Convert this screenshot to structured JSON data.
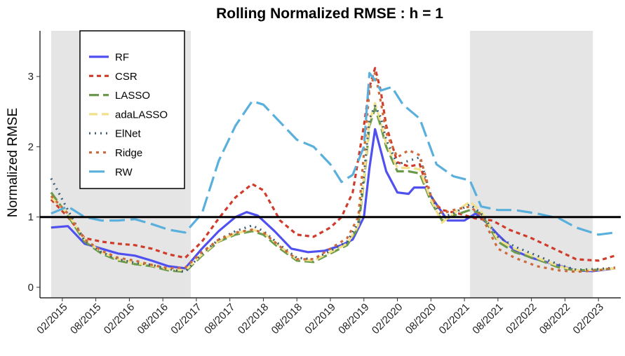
{
  "chart_data": {
    "type": "line",
    "title": "Rolling Normalized RMSE : h = 1",
    "xlabel": "",
    "ylabel": "Normalized RMSE",
    "ylim": [
      -0.15,
      3.65
    ],
    "yticks": [
      0,
      1,
      2,
      3
    ],
    "xticks": [
      "02/2015",
      "08/2015",
      "02/2016",
      "08/2016",
      "02/2017",
      "08/2017",
      "02/2018",
      "08/2018",
      "02/2019",
      "08/2019",
      "02/2020",
      "08/2020",
      "02/2021",
      "08/2021",
      "02/2022",
      "08/2022",
      "02/2023"
    ],
    "x_range_months": [
      "2014-10",
      "2023-06"
    ],
    "grid": false,
    "legend_position": "top-left",
    "reference_line": 1,
    "shaded_regions": [
      [
        "2014-12",
        "2017-01"
      ],
      [
        "2021-03",
        "2023-01"
      ]
    ],
    "colors": {
      "shade": "#e5e5e5",
      "reference": "#000000"
    },
    "series": [
      {
        "name": "RF",
        "color": "#5050f0",
        "dash": "solid",
        "points": [
          [
            "2014-12",
            0.85
          ],
          [
            "2015-03",
            0.87
          ],
          [
            "2015-06",
            0.62
          ],
          [
            "2015-09",
            0.55
          ],
          [
            "2015-12",
            0.48
          ],
          [
            "2016-03",
            0.45
          ],
          [
            "2016-06",
            0.38
          ],
          [
            "2016-09",
            0.3
          ],
          [
            "2016-12",
            0.27
          ],
          [
            "2017-03",
            0.55
          ],
          [
            "2017-06",
            0.8
          ],
          [
            "2017-09",
            1.0
          ],
          [
            "2017-11",
            1.07
          ],
          [
            "2018-01",
            1.02
          ],
          [
            "2018-04",
            0.8
          ],
          [
            "2018-07",
            0.55
          ],
          [
            "2018-10",
            0.5
          ],
          [
            "2019-01",
            0.52
          ],
          [
            "2019-04",
            0.6
          ],
          [
            "2019-06",
            0.68
          ],
          [
            "2019-08",
            1.0
          ],
          [
            "2019-09",
            1.7
          ],
          [
            "2019-10",
            2.25
          ],
          [
            "2019-11",
            1.95
          ],
          [
            "2019-12",
            1.65
          ],
          [
            "2020-02",
            1.35
          ],
          [
            "2020-04",
            1.33
          ],
          [
            "2020-05",
            1.42
          ],
          [
            "2020-07",
            1.42
          ],
          [
            "2020-09",
            1.18
          ],
          [
            "2020-11",
            0.95
          ],
          [
            "2021-02",
            0.95
          ],
          [
            "2021-04",
            1.05
          ],
          [
            "2021-06",
            0.92
          ],
          [
            "2021-08",
            0.75
          ],
          [
            "2021-11",
            0.52
          ],
          [
            "2022-02",
            0.42
          ],
          [
            "2022-06",
            0.33
          ],
          [
            "2022-10",
            0.24
          ],
          [
            "2023-01",
            0.23
          ],
          [
            "2023-05",
            0.27
          ]
        ]
      },
      {
        "name": "CSR",
        "color": "#d03c2c",
        "dash": "6,5",
        "points": [
          [
            "2014-12",
            1.25
          ],
          [
            "2015-03",
            1.0
          ],
          [
            "2015-06",
            0.7
          ],
          [
            "2015-09",
            0.65
          ],
          [
            "2015-12",
            0.62
          ],
          [
            "2016-03",
            0.6
          ],
          [
            "2016-06",
            0.55
          ],
          [
            "2016-09",
            0.47
          ],
          [
            "2016-12",
            0.42
          ],
          [
            "2017-03",
            0.65
          ],
          [
            "2017-06",
            0.98
          ],
          [
            "2017-09",
            1.28
          ],
          [
            "2017-12",
            1.47
          ],
          [
            "2018-02",
            1.38
          ],
          [
            "2018-05",
            0.95
          ],
          [
            "2018-08",
            0.75
          ],
          [
            "2018-11",
            0.72
          ],
          [
            "2019-02",
            0.85
          ],
          [
            "2019-04",
            1.0
          ],
          [
            "2019-06",
            1.35
          ],
          [
            "2019-08",
            2.3
          ],
          [
            "2019-09",
            2.85
          ],
          [
            "2019-10",
            3.12
          ],
          [
            "2019-11",
            2.8
          ],
          [
            "2019-12",
            2.3
          ],
          [
            "2020-02",
            1.78
          ],
          [
            "2020-04",
            1.72
          ],
          [
            "2020-06",
            1.75
          ],
          [
            "2020-08",
            1.25
          ],
          [
            "2020-10",
            1.1
          ],
          [
            "2021-01",
            1.05
          ],
          [
            "2021-04",
            0.98
          ],
          [
            "2021-07",
            0.95
          ],
          [
            "2021-10",
            0.82
          ],
          [
            "2022-02",
            0.7
          ],
          [
            "2022-06",
            0.55
          ],
          [
            "2022-10",
            0.4
          ],
          [
            "2023-02",
            0.38
          ],
          [
            "2023-05",
            0.45
          ]
        ]
      },
      {
        "name": "LASSO",
        "color": "#6b9a4a",
        "dash": "14,6",
        "points": [
          [
            "2014-12",
            1.35
          ],
          [
            "2015-03",
            1.02
          ],
          [
            "2015-06",
            0.65
          ],
          [
            "2015-09",
            0.48
          ],
          [
            "2015-12",
            0.38
          ],
          [
            "2016-03",
            0.33
          ],
          [
            "2016-06",
            0.3
          ],
          [
            "2016-09",
            0.24
          ],
          [
            "2016-12",
            0.22
          ],
          [
            "2017-03",
            0.45
          ],
          [
            "2017-06",
            0.65
          ],
          [
            "2017-09",
            0.75
          ],
          [
            "2017-12",
            0.8
          ],
          [
            "2018-02",
            0.75
          ],
          [
            "2018-05",
            0.55
          ],
          [
            "2018-08",
            0.38
          ],
          [
            "2018-11",
            0.36
          ],
          [
            "2019-02",
            0.48
          ],
          [
            "2019-05",
            0.6
          ],
          [
            "2019-07",
            0.85
          ],
          [
            "2019-08",
            1.5
          ],
          [
            "2019-09",
            2.3
          ],
          [
            "2019-10",
            2.55
          ],
          [
            "2019-11",
            2.3
          ],
          [
            "2019-12",
            2.0
          ],
          [
            "2020-02",
            1.65
          ],
          [
            "2020-04",
            1.65
          ],
          [
            "2020-06",
            1.62
          ],
          [
            "2020-08",
            1.22
          ],
          [
            "2020-10",
            0.95
          ],
          [
            "2020-12",
            1.02
          ],
          [
            "2021-03",
            1.1
          ],
          [
            "2021-05",
            1.05
          ],
          [
            "2021-08",
            0.65
          ],
          [
            "2021-11",
            0.5
          ],
          [
            "2022-03",
            0.4
          ],
          [
            "2022-07",
            0.28
          ],
          [
            "2022-10",
            0.24
          ],
          [
            "2023-02",
            0.25
          ],
          [
            "2023-05",
            0.27
          ]
        ]
      },
      {
        "name": "adaLASSO",
        "color": "#f2e08a",
        "dash": "12,6",
        "points": [
          [
            "2014-12",
            1.28
          ],
          [
            "2015-03",
            1.05
          ],
          [
            "2015-06",
            0.68
          ],
          [
            "2015-09",
            0.5
          ],
          [
            "2015-12",
            0.4
          ],
          [
            "2016-03",
            0.35
          ],
          [
            "2016-06",
            0.31
          ],
          [
            "2016-09",
            0.26
          ],
          [
            "2016-12",
            0.24
          ],
          [
            "2017-03",
            0.47
          ],
          [
            "2017-06",
            0.66
          ],
          [
            "2017-09",
            0.77
          ],
          [
            "2017-12",
            0.82
          ],
          [
            "2018-02",
            0.78
          ],
          [
            "2018-05",
            0.58
          ],
          [
            "2018-08",
            0.4
          ],
          [
            "2018-11",
            0.38
          ],
          [
            "2019-02",
            0.5
          ],
          [
            "2019-05",
            0.62
          ],
          [
            "2019-07",
            0.88
          ],
          [
            "2019-08",
            1.55
          ],
          [
            "2019-09",
            2.35
          ],
          [
            "2019-10",
            2.62
          ],
          [
            "2019-11",
            2.35
          ],
          [
            "2019-12",
            2.05
          ],
          [
            "2020-02",
            1.7
          ],
          [
            "2020-04",
            1.7
          ],
          [
            "2020-06",
            1.68
          ],
          [
            "2020-08",
            1.25
          ],
          [
            "2020-10",
            0.92
          ],
          [
            "2020-12",
            1.05
          ],
          [
            "2021-03",
            1.22
          ],
          [
            "2021-05",
            1.08
          ],
          [
            "2021-08",
            0.68
          ],
          [
            "2021-11",
            0.55
          ],
          [
            "2022-03",
            0.42
          ],
          [
            "2022-07",
            0.3
          ],
          [
            "2022-10",
            0.24
          ],
          [
            "2023-02",
            0.25
          ],
          [
            "2023-05",
            0.27
          ]
        ]
      },
      {
        "name": "ElNet",
        "color": "#3c5f7a",
        "dash": "2,6",
        "points": [
          [
            "2014-12",
            1.55
          ],
          [
            "2015-03",
            1.1
          ],
          [
            "2015-06",
            0.66
          ],
          [
            "2015-09",
            0.5
          ],
          [
            "2015-12",
            0.4
          ],
          [
            "2016-03",
            0.35
          ],
          [
            "2016-06",
            0.32
          ],
          [
            "2016-09",
            0.26
          ],
          [
            "2016-12",
            0.22
          ],
          [
            "2017-03",
            0.48
          ],
          [
            "2017-06",
            0.68
          ],
          [
            "2017-09",
            0.8
          ],
          [
            "2017-12",
            0.88
          ],
          [
            "2018-02",
            0.8
          ],
          [
            "2018-05",
            0.6
          ],
          [
            "2018-08",
            0.42
          ],
          [
            "2018-11",
            0.4
          ],
          [
            "2019-02",
            0.52
          ],
          [
            "2019-05",
            0.65
          ],
          [
            "2019-07",
            0.92
          ],
          [
            "2019-08",
            1.6
          ],
          [
            "2019-09",
            2.4
          ],
          [
            "2019-10",
            2.58
          ],
          [
            "2019-11",
            2.42
          ],
          [
            "2019-12",
            2.1
          ],
          [
            "2020-02",
            1.75
          ],
          [
            "2020-04",
            1.8
          ],
          [
            "2020-06",
            1.85
          ],
          [
            "2020-08",
            1.3
          ],
          [
            "2020-10",
            1.0
          ],
          [
            "2020-12",
            1.05
          ],
          [
            "2021-03",
            1.18
          ],
          [
            "2021-05",
            1.05
          ],
          [
            "2021-08",
            0.72
          ],
          [
            "2021-11",
            0.58
          ],
          [
            "2022-03",
            0.45
          ],
          [
            "2022-07",
            0.32
          ],
          [
            "2022-10",
            0.25
          ],
          [
            "2023-02",
            0.26
          ],
          [
            "2023-05",
            0.28
          ]
        ]
      },
      {
        "name": "Ridge",
        "color": "#cc6a3a",
        "dash": "4,6",
        "points": [
          [
            "2014-12",
            1.3
          ],
          [
            "2015-03",
            1.05
          ],
          [
            "2015-06",
            0.68
          ],
          [
            "2015-09",
            0.52
          ],
          [
            "2015-12",
            0.42
          ],
          [
            "2016-03",
            0.38
          ],
          [
            "2016-06",
            0.32
          ],
          [
            "2016-09",
            0.27
          ],
          [
            "2016-12",
            0.28
          ],
          [
            "2017-03",
            0.5
          ],
          [
            "2017-06",
            0.68
          ],
          [
            "2017-09",
            0.78
          ],
          [
            "2017-12",
            0.82
          ],
          [
            "2018-02",
            0.78
          ],
          [
            "2018-05",
            0.58
          ],
          [
            "2018-08",
            0.4
          ],
          [
            "2018-11",
            0.4
          ],
          [
            "2019-02",
            0.55
          ],
          [
            "2019-05",
            0.7
          ],
          [
            "2019-07",
            1.0
          ],
          [
            "2019-08",
            1.9
          ],
          [
            "2019-09",
            2.8
          ],
          [
            "2019-10",
            3.05
          ],
          [
            "2019-11",
            2.65
          ],
          [
            "2019-12",
            2.2
          ],
          [
            "2020-02",
            1.85
          ],
          [
            "2020-04",
            1.95
          ],
          [
            "2020-06",
            1.88
          ],
          [
            "2020-08",
            1.3
          ],
          [
            "2020-10",
            1.05
          ],
          [
            "2020-12",
            1.1
          ],
          [
            "2021-03",
            1.15
          ],
          [
            "2021-05",
            1.02
          ],
          [
            "2021-08",
            0.55
          ],
          [
            "2021-11",
            0.42
          ],
          [
            "2022-03",
            0.3
          ],
          [
            "2022-07",
            0.24
          ],
          [
            "2022-10",
            0.22
          ],
          [
            "2023-02",
            0.24
          ],
          [
            "2023-05",
            0.28
          ]
        ]
      },
      {
        "name": "RW",
        "color": "#5ab0dc",
        "dash": "22,8",
        "points": [
          [
            "2014-12",
            1.05
          ],
          [
            "2015-03",
            1.15
          ],
          [
            "2015-06",
            1.0
          ],
          [
            "2015-09",
            0.95
          ],
          [
            "2015-12",
            0.95
          ],
          [
            "2016-03",
            0.97
          ],
          [
            "2016-06",
            0.9
          ],
          [
            "2016-09",
            0.82
          ],
          [
            "2016-12",
            0.78
          ],
          [
            "2017-03",
            1.05
          ],
          [
            "2017-06",
            1.8
          ],
          [
            "2017-09",
            2.3
          ],
          [
            "2017-12",
            2.65
          ],
          [
            "2018-02",
            2.6
          ],
          [
            "2018-05",
            2.35
          ],
          [
            "2018-08",
            2.1
          ],
          [
            "2018-11",
            2.0
          ],
          [
            "2019-02",
            1.75
          ],
          [
            "2019-04",
            1.5
          ],
          [
            "2019-06",
            1.6
          ],
          [
            "2019-08",
            2.0
          ],
          [
            "2019-09",
            3.05
          ],
          [
            "2019-10",
            2.95
          ],
          [
            "2019-11",
            2.8
          ],
          [
            "2020-01",
            2.85
          ],
          [
            "2020-03",
            2.6
          ],
          [
            "2020-06",
            2.4
          ],
          [
            "2020-09",
            1.75
          ],
          [
            "2020-12",
            1.58
          ],
          [
            "2021-03",
            1.52
          ],
          [
            "2021-05",
            1.15
          ],
          [
            "2021-08",
            1.1
          ],
          [
            "2021-11",
            1.1
          ],
          [
            "2022-03",
            1.05
          ],
          [
            "2022-07",
            0.98
          ],
          [
            "2022-10",
            0.85
          ],
          [
            "2023-02",
            0.75
          ],
          [
            "2023-05",
            0.78
          ]
        ]
      }
    ]
  }
}
